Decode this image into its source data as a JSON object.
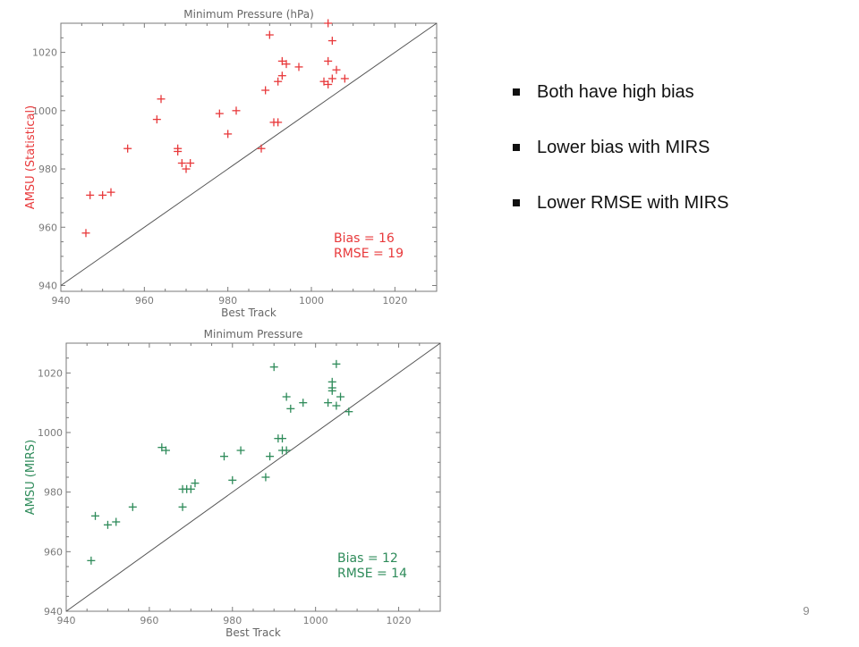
{
  "bullets": [
    {
      "text": "Both have high bias"
    },
    {
      "text": "Lower bias with MIRS"
    },
    {
      "text": "Lower RMSE with MIRS"
    }
  ],
  "page_number": "9",
  "chart_data": [
    {
      "type": "scatter",
      "title": "Minimum Pressure (hPa)",
      "xlabel": "Best Track",
      "ylabel": "AMSU (Statistical)",
      "xlim": [
        940,
        1030
      ],
      "ylim": [
        938,
        1030
      ],
      "xticks": [
        940,
        960,
        980,
        1000,
        1020
      ],
      "yticks": [
        940,
        960,
        980,
        1000,
        1020
      ],
      "color": "#e8393b",
      "marker": "+",
      "reference_line": "1:1 diagonal",
      "stats": [
        "Bias = 16",
        "RMSE = 19"
      ],
      "points": [
        [
          946,
          958
        ],
        [
          947,
          971
        ],
        [
          950,
          971
        ],
        [
          952,
          972
        ],
        [
          956,
          987
        ],
        [
          963,
          997
        ],
        [
          964,
          1004
        ],
        [
          968,
          987
        ],
        [
          968,
          986
        ],
        [
          969,
          982
        ],
        [
          970,
          980
        ],
        [
          971,
          982
        ],
        [
          978,
          999
        ],
        [
          980,
          992
        ],
        [
          982,
          1000
        ],
        [
          988,
          987
        ],
        [
          989,
          1007
        ],
        [
          990,
          1026
        ],
        [
          991,
          996
        ],
        [
          992,
          996
        ],
        [
          992,
          1010
        ],
        [
          993,
          1017
        ],
        [
          993,
          1012
        ],
        [
          994,
          1016
        ],
        [
          997,
          1015
        ],
        [
          1003,
          1010
        ],
        [
          1004,
          1030
        ],
        [
          1004,
          1017
        ],
        [
          1004,
          1009
        ],
        [
          1005,
          1024
        ],
        [
          1005,
          1011
        ],
        [
          1006,
          1014
        ],
        [
          1008,
          1011
        ]
      ]
    },
    {
      "type": "scatter",
      "title": "Minimum Pressure",
      "xlabel": "Best Track",
      "ylabel": "AMSU (MIRS)",
      "xlim": [
        940,
        1030
      ],
      "ylim": [
        940,
        1030
      ],
      "xticks": [
        940,
        960,
        980,
        1000,
        1020
      ],
      "yticks": [
        940,
        960,
        980,
        1000,
        1020
      ],
      "color": "#2e8b5a",
      "marker": "+",
      "reference_line": "1:1 diagonal",
      "stats": [
        "Bias = 12",
        "RMSE = 14"
      ],
      "points": [
        [
          946,
          957
        ],
        [
          947,
          972
        ],
        [
          950,
          969
        ],
        [
          952,
          970
        ],
        [
          956,
          975
        ],
        [
          963,
          995
        ],
        [
          964,
          994
        ],
        [
          968,
          981
        ],
        [
          968,
          975
        ],
        [
          969,
          981
        ],
        [
          970,
          981
        ],
        [
          971,
          983
        ],
        [
          978,
          992
        ],
        [
          980,
          984
        ],
        [
          982,
          994
        ],
        [
          988,
          985
        ],
        [
          989,
          992
        ],
        [
          990,
          1022
        ],
        [
          991,
          998
        ],
        [
          992,
          998
        ],
        [
          992,
          994
        ],
        [
          993,
          1012
        ],
        [
          993,
          994
        ],
        [
          994,
          1008
        ],
        [
          997,
          1010
        ],
        [
          1003,
          1010
        ],
        [
          1004,
          1017
        ],
        [
          1004,
          1015
        ],
        [
          1004,
          1014
        ],
        [
          1005,
          1023
        ],
        [
          1005,
          1009
        ],
        [
          1006,
          1012
        ],
        [
          1008,
          1007
        ]
      ]
    }
  ]
}
